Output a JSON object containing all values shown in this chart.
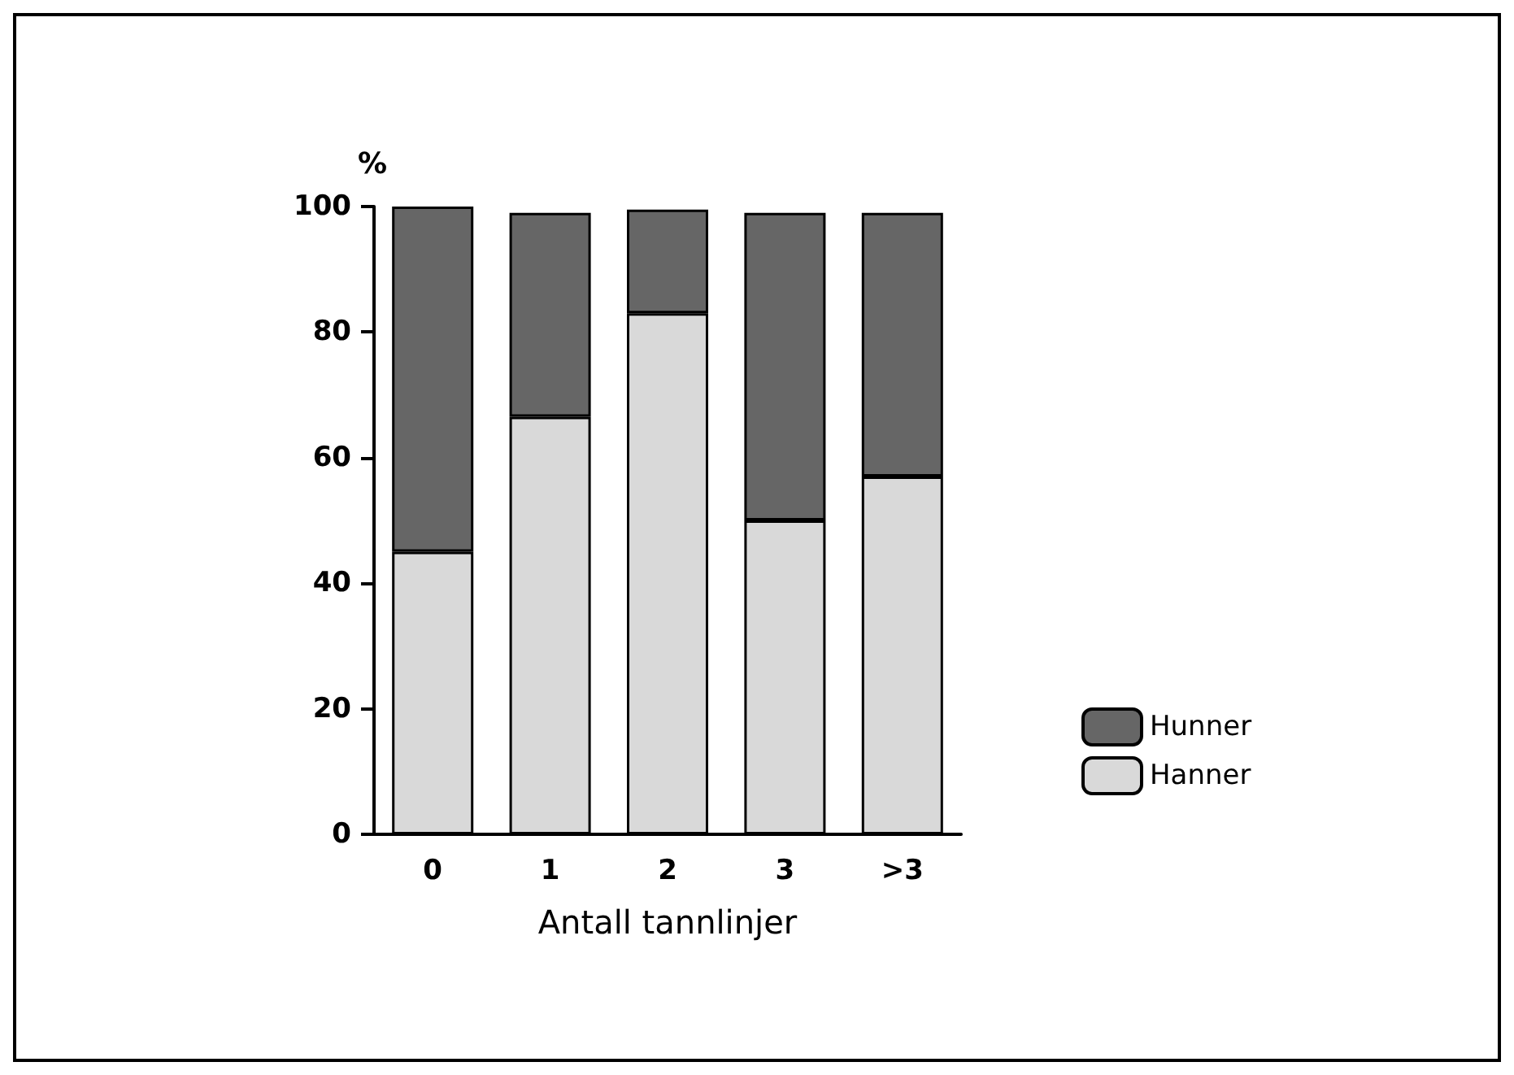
{
  "chart_data": {
    "type": "bar",
    "stacked": true,
    "ylabel": "%",
    "xlabel": "Antall tannlinjer",
    "categories": [
      "0",
      "1",
      "2",
      "3",
      ">3"
    ],
    "series": [
      {
        "name": "Hanner",
        "color": "#d9d9d9",
        "values": [
          45,
          66.5,
          83,
          50,
          57
        ]
      },
      {
        "name": "Hunner",
        "color": "#666666",
        "values": [
          55,
          32.5,
          16.5,
          49,
          42
        ]
      }
    ],
    "ylim": [
      0,
      100
    ],
    "yticks": [
      0,
      20,
      40,
      60,
      80,
      100
    ],
    "grid": false,
    "legend": "right"
  }
}
